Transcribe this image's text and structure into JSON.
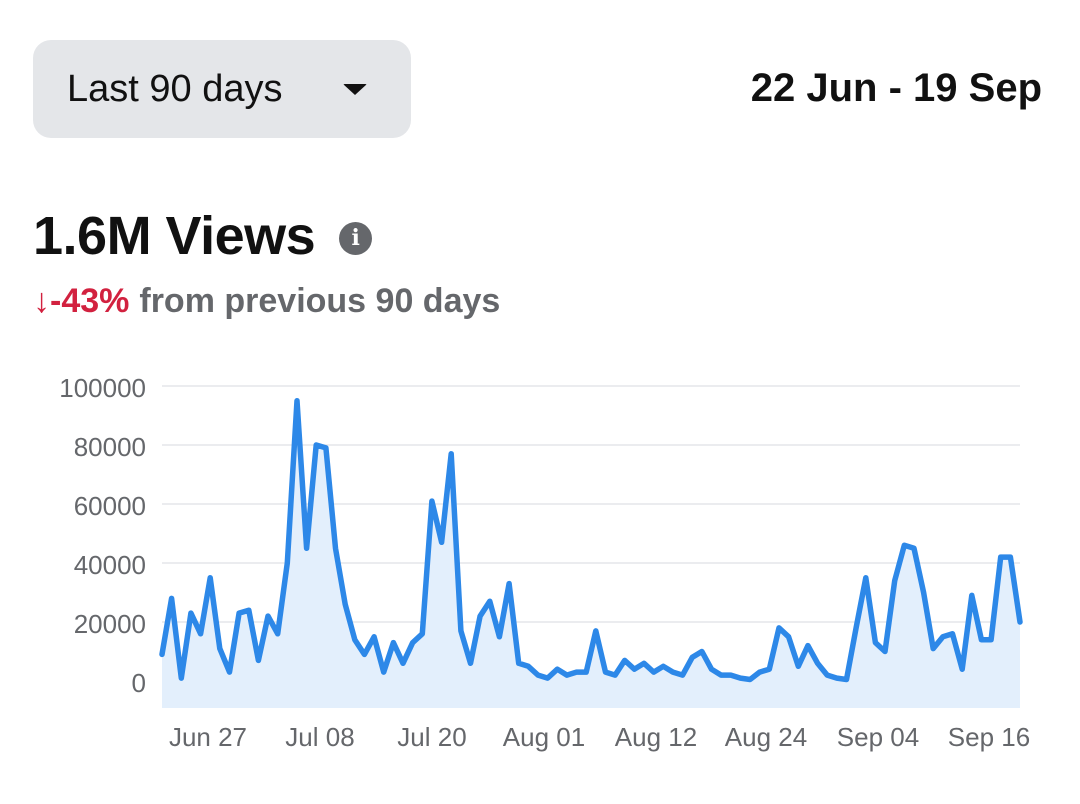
{
  "range_select": {
    "label": "Last 90 days"
  },
  "date_range": "22 Jun - 19 Sep",
  "summary": {
    "views": "1.6M Views",
    "info_icon": "info-icon",
    "change_arrow": "↓",
    "change_value": "-43%",
    "change_text": "from previous 90 days"
  },
  "colors": {
    "line": "#2d88e8",
    "fill": "#e3effc",
    "negative": "#d2213f",
    "muted_text": "#65676b",
    "grid": "#dfe1e5",
    "select_bg": "#e4e6e9"
  },
  "chart_data": {
    "type": "area",
    "ylim": [
      0,
      100000
    ],
    "y_ticks": [
      "100000",
      "80000",
      "60000",
      "40000",
      "20000",
      "0"
    ],
    "x_ticks": [
      "Jun 27",
      "Jul 08",
      "Jul 20",
      "Aug 01",
      "Aug 12",
      "Aug 24",
      "Sep 04",
      "Sep 16"
    ],
    "grid": true,
    "series": [
      {
        "values": [
          9000,
          28000,
          1000,
          23000,
          16000,
          35000,
          11000,
          3000,
          23000,
          24000,
          7000,
          22000,
          16000,
          40000,
          95000,
          45000,
          80000,
          79000,
          45000,
          26000,
          14000,
          9000,
          15000,
          3000,
          13000,
          6000,
          13000,
          16000,
          61000,
          47000,
          77000,
          17000,
          6000,
          22000,
          27000,
          15000,
          33000,
          6000,
          5000,
          2000,
          1000,
          4000,
          2000,
          3000,
          3000,
          17000,
          3000,
          2000,
          7000,
          4000,
          6000,
          3000,
          5000,
          3000,
          2000,
          8000,
          10000,
          4000,
          2000,
          2000,
          1000,
          500,
          3000,
          4000,
          18000,
          15000,
          5000,
          12000,
          6000,
          2000,
          1000,
          500,
          18000,
          35000,
          13000,
          10000,
          34000,
          46000,
          45000,
          30000,
          11000,
          15000,
          16000,
          4000,
          29000,
          14000,
          14000,
          42000,
          42000,
          20000
        ]
      }
    ]
  }
}
